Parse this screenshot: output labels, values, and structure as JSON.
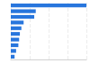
{
  "chart_data": {
    "type": "bar",
    "orientation": "horizontal",
    "categories": [
      null,
      null,
      null,
      null,
      null,
      null,
      null,
      null,
      null,
      null
    ],
    "values": [
      100,
      33,
      31,
      17,
      14,
      12,
      11,
      10,
      7,
      5
    ],
    "color": "#2876dd",
    "xlim": [
      0,
      100
    ],
    "xticks": [
      0,
      25,
      50,
      75,
      100
    ],
    "grid": true,
    "tick_labels": false
  }
}
